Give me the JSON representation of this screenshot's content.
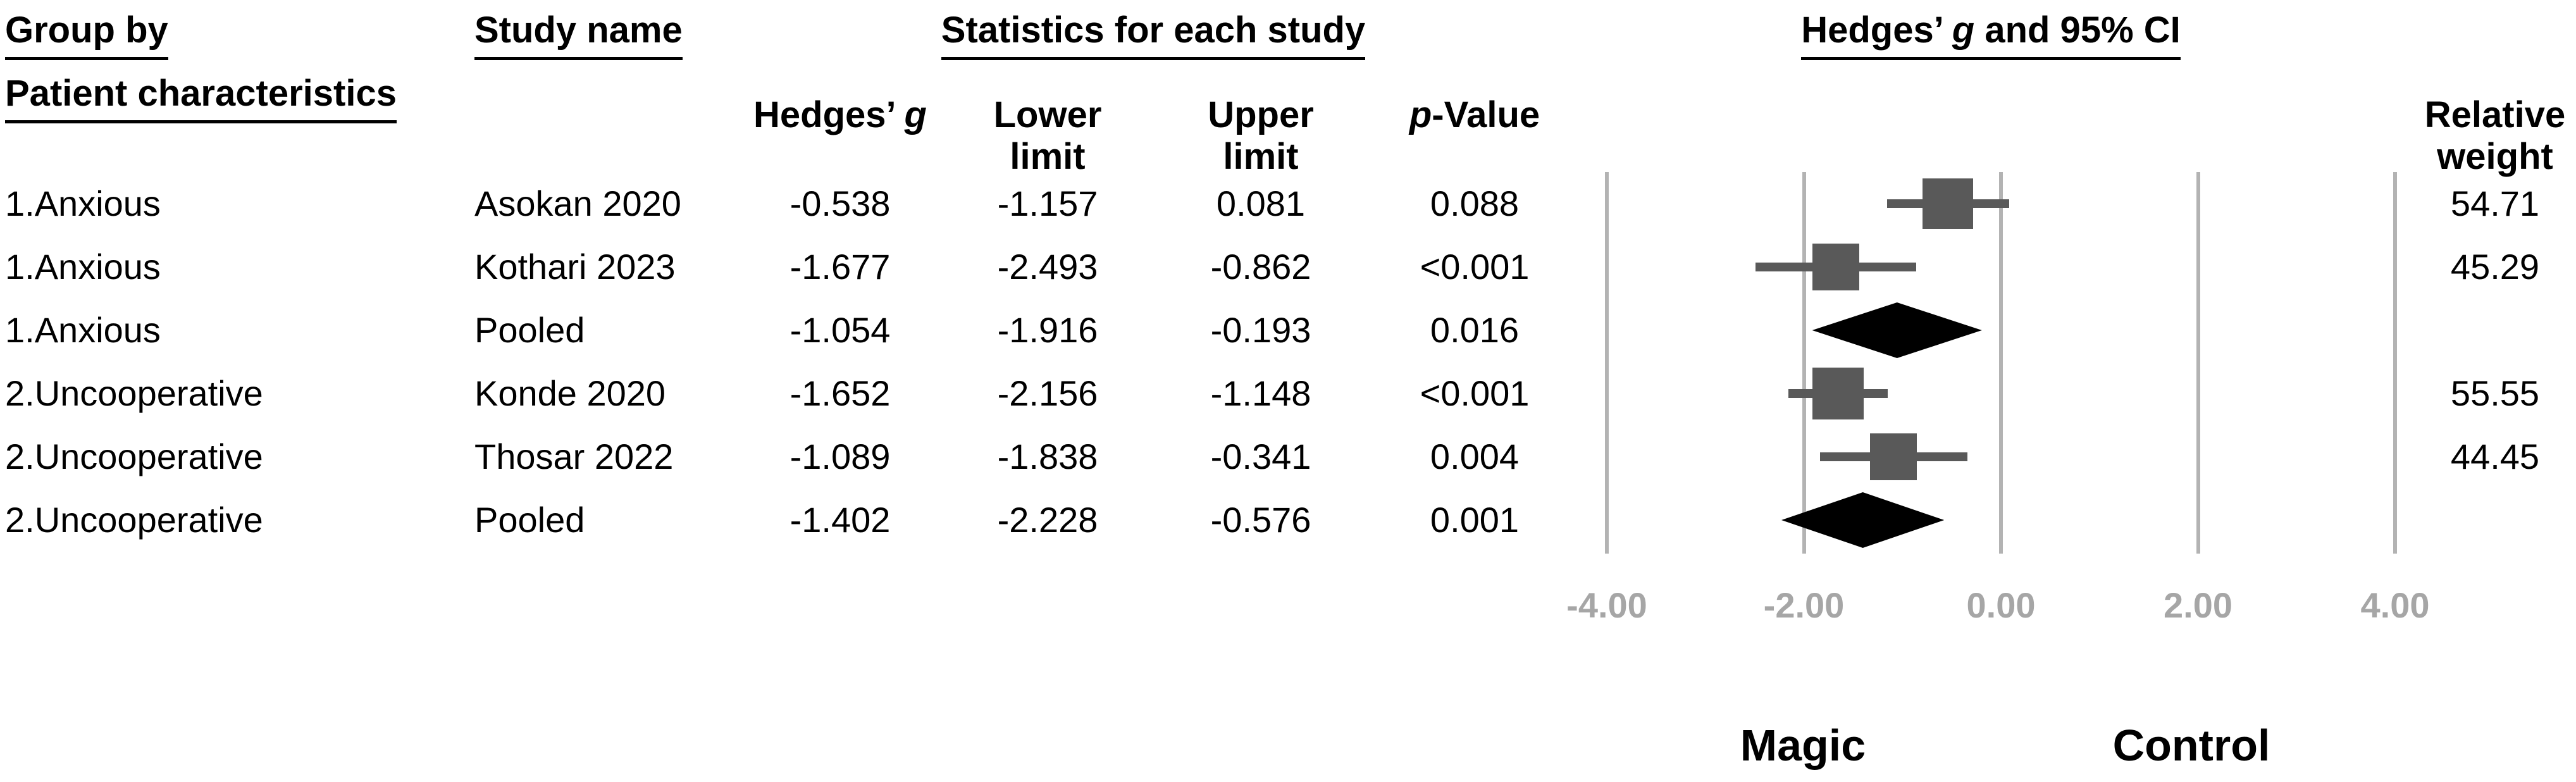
{
  "figure": {
    "headers": {
      "group_by": "Group by",
      "patient_characteristics": "Patient characteristics",
      "study_name": "Study name",
      "stats_title": "Statistics for each study",
      "plot_title_pre": "Hedges’ ",
      "plot_title_italic": "g",
      "plot_title_post": " and 95% CI",
      "col_hedges_pre": "Hedges’ ",
      "col_hedges_italic": "g",
      "col_lower_line1": "Lower",
      "col_lower_line2": "limit",
      "col_upper_line1": "Upper",
      "col_upper_line2": "limit",
      "col_p_italic": "p",
      "col_p_rest": "-Value",
      "col_weight_line1": "Relative",
      "col_weight_line2": "weight"
    },
    "footer": {
      "left_label": "Magic",
      "right_label": "Control"
    }
  },
  "colors": {
    "marker_square": "#595959",
    "ci_line": "#595959",
    "pooled_diamond": "#000000",
    "gridline": "#b3b3b3",
    "axis_text": "#a6a6a6",
    "text": "#000000",
    "background": "#ffffff"
  },
  "chart_data": {
    "type": "scatter",
    "subtype": "forest-plot",
    "title": "Hedges’ g and 95% CI",
    "effect_measure": "Hedges’ g",
    "grouping_label": "Group by Patient characteristics",
    "xlim": [
      -5,
      5
    ],
    "x_tick_values": [
      -4,
      -2,
      0,
      2,
      4
    ],
    "x_tick_labels": [
      "-4.00",
      "-2.00",
      "0.00",
      "2.00",
      "4.00"
    ],
    "footer_left": "Magic",
    "footer_right": "Control",
    "grid": true,
    "legend_position": "none",
    "groups": [
      "1.Anxious",
      "2.Uncooperative"
    ],
    "points": [
      {
        "group": "1.Anxious",
        "study": "Asokan 2020",
        "g": -0.538,
        "ci_lower": -1.157,
        "ci_upper": 0.081,
        "p_value": "0.088",
        "relative_weight": 54.71,
        "marker": "square"
      },
      {
        "group": "1.Anxious",
        "study": "Kothari 2023",
        "g": -1.677,
        "ci_lower": -2.493,
        "ci_upper": -0.862,
        "p_value": "<0.001",
        "relative_weight": 45.29,
        "marker": "square"
      },
      {
        "group": "1.Anxious",
        "study": "Pooled",
        "g": -1.054,
        "ci_lower": -1.916,
        "ci_upper": -0.193,
        "p_value": "0.016",
        "relative_weight": null,
        "marker": "diamond"
      },
      {
        "group": "2.Uncooperative",
        "study": "Konde 2020",
        "g": -1.652,
        "ci_lower": -2.156,
        "ci_upper": -1.148,
        "p_value": "<0.001",
        "relative_weight": 55.55,
        "marker": "square"
      },
      {
        "group": "2.Uncooperative",
        "study": "Thosar 2022",
        "g": -1.089,
        "ci_lower": -1.838,
        "ci_upper": -0.341,
        "p_value": "0.004",
        "relative_weight": 44.45,
        "marker": "square"
      },
      {
        "group": "2.Uncooperative",
        "study": "Pooled",
        "g": -1.402,
        "ci_lower": -2.228,
        "ci_upper": -0.576,
        "p_value": "0.001",
        "relative_weight": null,
        "marker": "diamond"
      }
    ]
  }
}
